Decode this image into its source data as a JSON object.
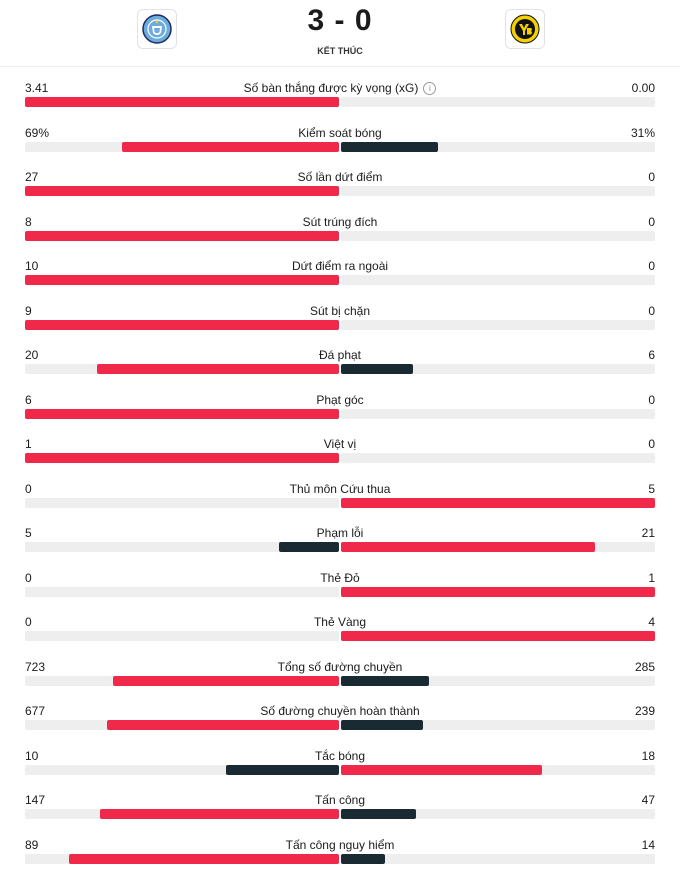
{
  "match": {
    "score": "3 - 0",
    "status": "KẾT THÚC",
    "home_logo_icon": "manchester-city-crest-icon",
    "away_logo_icon": "young-boys-crest-icon"
  },
  "colors": {
    "home_bar": "#f0284a",
    "away_bar": "#1a2a33",
    "track": "#eeeeee",
    "home_crest": "#6cabdd",
    "away_crest": "#f5d000"
  },
  "stats": [
    {
      "label": "Số bàn thắng được kỳ vọng (xG)",
      "home": "3.41",
      "away": "0.00",
      "home_share": 1.0,
      "away_share": 0.0,
      "info": true,
      "home_color": "#f0284a",
      "away_color": "#1a2a33"
    },
    {
      "label": "Kiểm soát bóng",
      "home": "69%",
      "away": "31%",
      "home_share": 0.69,
      "away_share": 0.31,
      "home_color": "#f0284a",
      "away_color": "#1a2a33"
    },
    {
      "label": "Số lần dứt điểm",
      "home": "27",
      "away": "0",
      "home_share": 1.0,
      "away_share": 0.0,
      "home_color": "#f0284a",
      "away_color": "#1a2a33"
    },
    {
      "label": "Sút trúng đích",
      "home": "8",
      "away": "0",
      "home_share": 1.0,
      "away_share": 0.0,
      "home_color": "#f0284a",
      "away_color": "#1a2a33"
    },
    {
      "label": "Dứt điểm ra ngoài",
      "home": "10",
      "away": "0",
      "home_share": 1.0,
      "away_share": 0.0,
      "home_color": "#f0284a",
      "away_color": "#1a2a33"
    },
    {
      "label": "Sút bị chặn",
      "home": "9",
      "away": "0",
      "home_share": 1.0,
      "away_share": 0.0,
      "home_color": "#f0284a",
      "away_color": "#1a2a33"
    },
    {
      "label": "Đá phạt",
      "home": "20",
      "away": "6",
      "home_share": 0.77,
      "away_share": 0.23,
      "home_color": "#f0284a",
      "away_color": "#1a2a33"
    },
    {
      "label": "Phạt góc",
      "home": "6",
      "away": "0",
      "home_share": 1.0,
      "away_share": 0.0,
      "home_color": "#f0284a",
      "away_color": "#1a2a33"
    },
    {
      "label": "Việt vị",
      "home": "1",
      "away": "0",
      "home_share": 1.0,
      "away_share": 0.0,
      "home_color": "#f0284a",
      "away_color": "#1a2a33"
    },
    {
      "label": "Thủ môn Cứu thua",
      "home": "0",
      "away": "5",
      "home_share": 0.0,
      "away_share": 1.0,
      "home_color": "#1a2a33",
      "away_color": "#f0284a"
    },
    {
      "label": "Phạm lỗi",
      "home": "5",
      "away": "21",
      "home_share": 0.19,
      "away_share": 0.81,
      "home_color": "#1a2a33",
      "away_color": "#f0284a"
    },
    {
      "label": "Thẻ Đỏ",
      "home": "0",
      "away": "1",
      "home_share": 0.0,
      "away_share": 1.0,
      "home_color": "#1a2a33",
      "away_color": "#f0284a"
    },
    {
      "label": "Thẻ Vàng",
      "home": "0",
      "away": "4",
      "home_share": 0.0,
      "away_share": 1.0,
      "home_color": "#1a2a33",
      "away_color": "#f0284a"
    },
    {
      "label": "Tổng số đường chuyền",
      "home": "723",
      "away": "285",
      "home_share": 0.72,
      "away_share": 0.28,
      "home_color": "#f0284a",
      "away_color": "#1a2a33"
    },
    {
      "label": "Số đường chuyền hoàn thành",
      "home": "677",
      "away": "239",
      "home_share": 0.74,
      "away_share": 0.26,
      "home_color": "#f0284a",
      "away_color": "#1a2a33"
    },
    {
      "label": "Tắc bóng",
      "home": "10",
      "away": "18",
      "home_share": 0.36,
      "away_share": 0.64,
      "home_color": "#1a2a33",
      "away_color": "#f0284a"
    },
    {
      "label": "Tấn công",
      "home": "147",
      "away": "47",
      "home_share": 0.76,
      "away_share": 0.24,
      "home_color": "#f0284a",
      "away_color": "#1a2a33"
    },
    {
      "label": "Tấn công nguy hiểm",
      "home": "89",
      "away": "14",
      "home_share": 0.86,
      "away_share": 0.14,
      "home_color": "#f0284a",
      "away_color": "#1a2a33"
    }
  ]
}
